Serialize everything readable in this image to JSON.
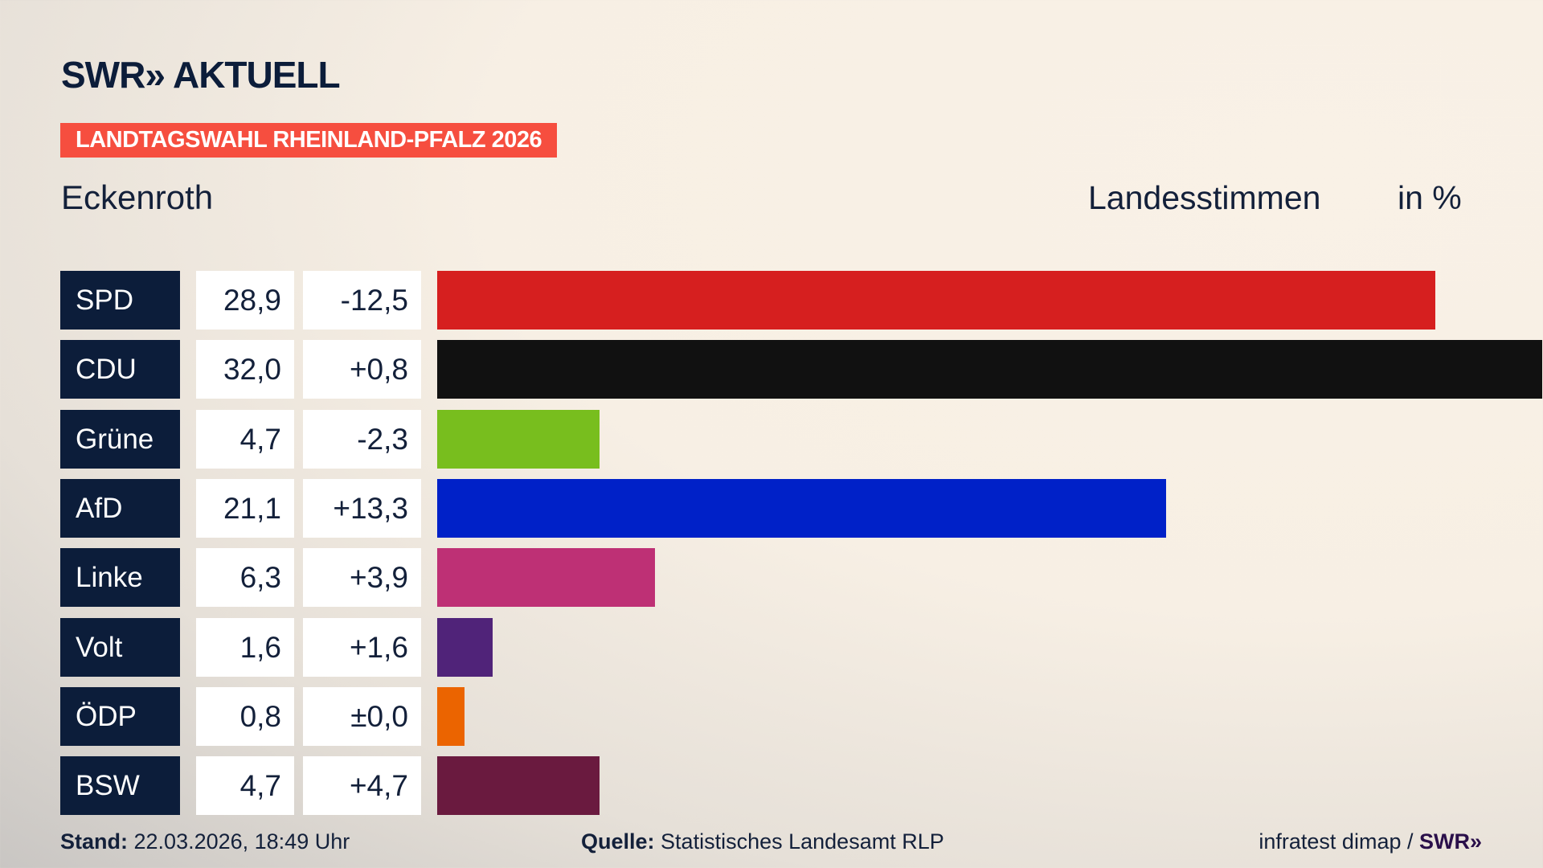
{
  "header": {
    "logo": "SWR» AKTUELL",
    "banner": "LANDTAGSWAHL RHEINLAND-PFALZ 2026",
    "location": "Eckenroth",
    "measure": "Landesstimmen",
    "unit": "in %"
  },
  "chart_data": {
    "type": "bar",
    "orientation": "horizontal",
    "title": "Landesstimmen",
    "unit": "in %",
    "categories": [
      "SPD",
      "CDU",
      "Grüne",
      "AfD",
      "Linke",
      "Volt",
      "ÖDP",
      "BSW"
    ],
    "values": [
      28.9,
      32.0,
      4.7,
      21.1,
      6.3,
      1.6,
      0.8,
      4.7
    ],
    "value_labels": [
      "28,9",
      "32,0",
      "4,7",
      "21,1",
      "6,3",
      "1,6",
      "0,8",
      "4,7"
    ],
    "diff_labels": [
      "-12,5",
      "+0,8",
      "-2,3",
      "+13,3",
      "+3,9",
      "+1,6",
      "±0,0",
      "+4,7"
    ],
    "colors": [
      "#d61f1f",
      "#111111",
      "#78be1e",
      "#0021c8",
      "#be3075",
      "#502379",
      "#eb6400",
      "#6a1a3f"
    ],
    "xlim": [
      0,
      32.0
    ]
  },
  "footer": {
    "stand_label": "Stand:",
    "stand_value": "22.03.2026, 18:49 Uhr",
    "source_label": "Quelle:",
    "source_value": "Statistisches Landesamt RLP",
    "credit": "infratest dimap / ",
    "credit_logo": "SWR»"
  }
}
